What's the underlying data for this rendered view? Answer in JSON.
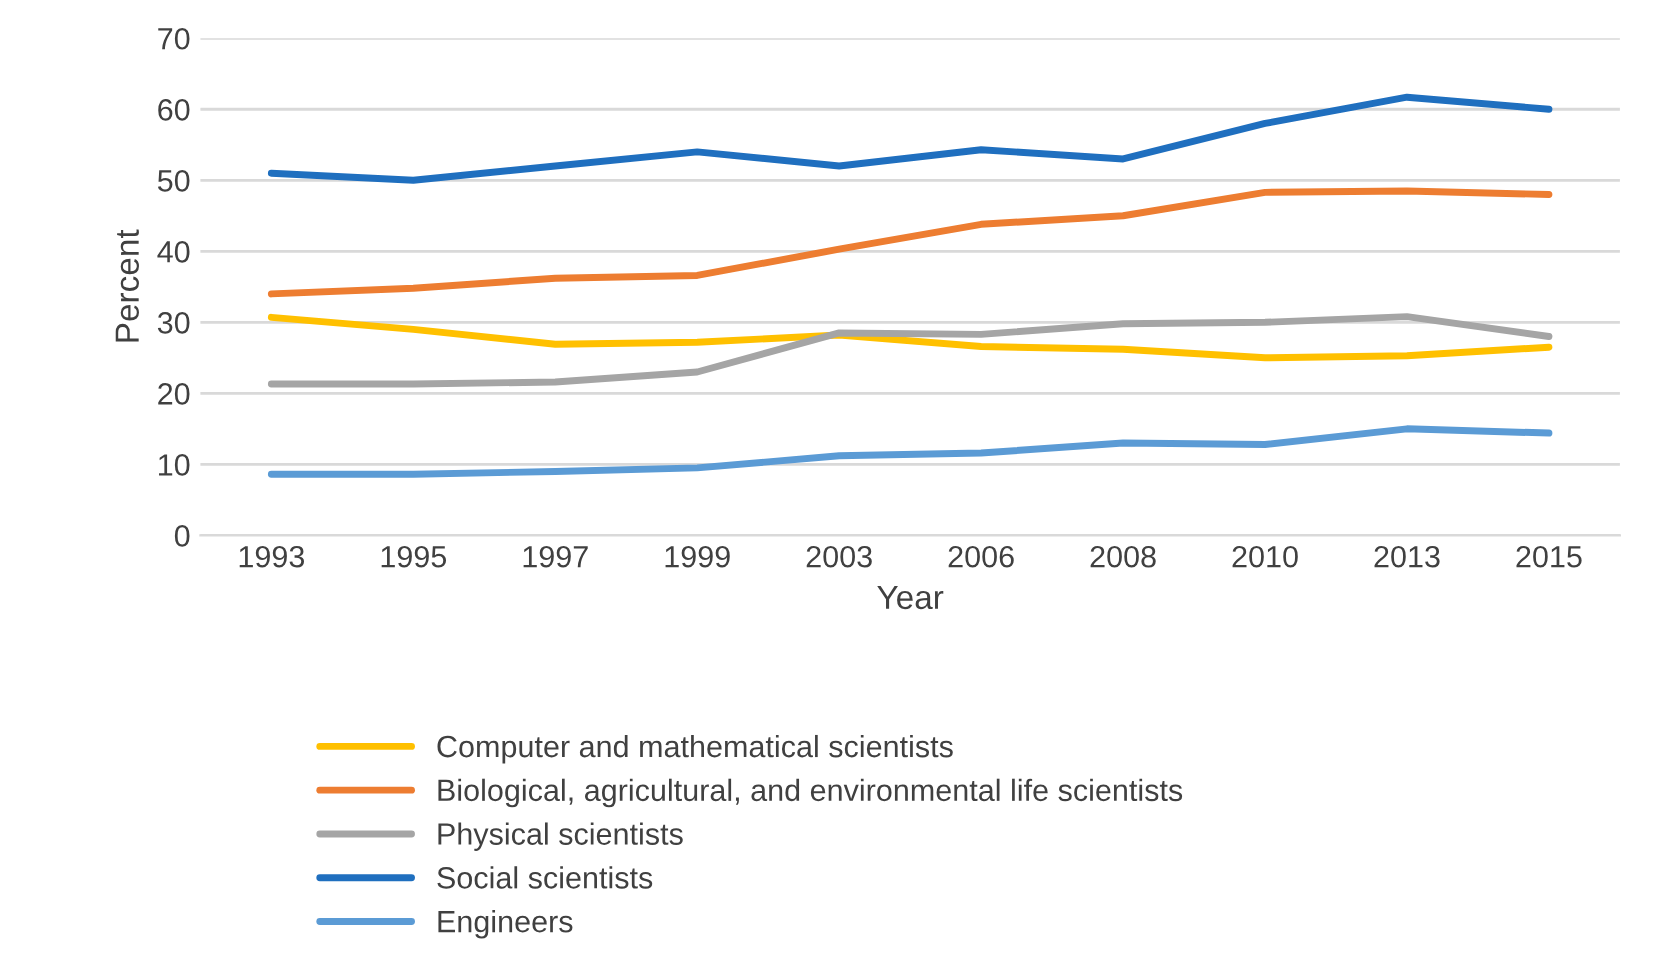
{
  "chart_data": {
    "type": "line",
    "xlabel": "Year",
    "ylabel": "Percent",
    "categories": [
      "1993",
      "1995",
      "1997",
      "1999",
      "2003",
      "2006",
      "2008",
      "2010",
      "2013",
      "2015"
    ],
    "series": [
      {
        "name": "Computer and mathematical scientists",
        "color": "#ffc000",
        "values": [
          30.7,
          29,
          26.9,
          27.2,
          28.2,
          26.6,
          26.2,
          25,
          25.3,
          26.5
        ]
      },
      {
        "name": "Biological, agricultural, and environmental life scientists",
        "color": "#ed7d31",
        "values": [
          34,
          34.8,
          36.2,
          36.6,
          40.3,
          43.8,
          45,
          48.3,
          48.5,
          48
        ]
      },
      {
        "name": "Physical scientists",
        "color": "#a5a5a5",
        "values": [
          21.3,
          21.3,
          21.6,
          23,
          28.5,
          28.3,
          29.8,
          30,
          30.8,
          28
        ]
      },
      {
        "name": "Social scientists",
        "color": "#1f6fbf",
        "values": [
          51,
          50,
          52,
          54,
          52,
          54.3,
          53,
          58,
          61.7,
          60
        ]
      },
      {
        "name": "Engineers",
        "color": "#5b9bd5",
        "values": [
          8.6,
          8.6,
          9,
          9.5,
          11.2,
          11.6,
          13,
          12.8,
          15,
          14.4
        ]
      }
    ],
    "ylim": [
      0,
      70
    ],
    "yticks": [
      0,
      10,
      20,
      30,
      40,
      50,
      60,
      70
    ],
    "grid": "y",
    "legend": "bottom",
    "marker": "none",
    "line_style": "solid"
  }
}
